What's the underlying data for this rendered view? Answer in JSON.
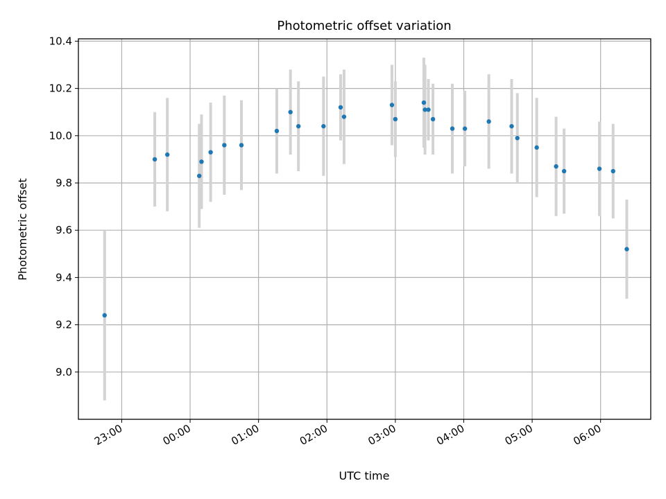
{
  "chart_data": {
    "type": "scatter",
    "title": "Photometric offset variation",
    "xlabel": "UTC time",
    "ylabel": "Photometric offset",
    "grid": true,
    "colors": {
      "point": "#1f77b4",
      "error_bar": "#d3d3d3",
      "grid": "#b0b0b0"
    },
    "xlim": [
      "22:22",
      "06:44"
    ],
    "ylim": [
      8.8,
      10.41
    ],
    "xticks": [
      "23:00",
      "00:00",
      "01:00",
      "02:00",
      "03:00",
      "04:00",
      "05:00",
      "06:00"
    ],
    "yticks": [
      9.0,
      9.2,
      9.4,
      9.6,
      9.8,
      10.0,
      10.2,
      10.4
    ],
    "ytick_labels": [
      "9.0",
      "9.2",
      "9.4",
      "9.6",
      "9.8",
      "10.0",
      "10.2",
      "10.4"
    ],
    "series": [
      {
        "points": [
          {
            "x": "22:45",
            "y": 9.24,
            "yerr": 0.36
          },
          {
            "x": "23:29",
            "y": 9.9,
            "yerr": 0.2
          },
          {
            "x": "23:40",
            "y": 9.92,
            "yerr": 0.24
          },
          {
            "x": "00:08",
            "y": 9.83,
            "yerr": 0.22
          },
          {
            "x": "00:10",
            "y": 9.89,
            "yerr": 0.2
          },
          {
            "x": "00:18",
            "y": 9.93,
            "yerr": 0.21
          },
          {
            "x": "00:30",
            "y": 9.96,
            "yerr": 0.21
          },
          {
            "x": "00:45",
            "y": 9.96,
            "yerr": 0.19
          },
          {
            "x": "01:16",
            "y": 10.02,
            "yerr": 0.18
          },
          {
            "x": "01:28",
            "y": 10.1,
            "yerr": 0.18
          },
          {
            "x": "01:35",
            "y": 10.04,
            "yerr": 0.19
          },
          {
            "x": "01:57",
            "y": 10.04,
            "yerr": 0.21
          },
          {
            "x": "02:12",
            "y": 10.12,
            "yerr": 0.14
          },
          {
            "x": "02:15",
            "y": 10.08,
            "yerr": 0.2
          },
          {
            "x": "02:57",
            "y": 10.13,
            "yerr": 0.17
          },
          {
            "x": "03:00",
            "y": 10.07,
            "yerr": 0.16
          },
          {
            "x": "03:25",
            "y": 10.14,
            "yerr": 0.19
          },
          {
            "x": "03:26",
            "y": 10.11,
            "yerr": 0.19
          },
          {
            "x": "03:29",
            "y": 10.11,
            "yerr": 0.13
          },
          {
            "x": "03:33",
            "y": 10.07,
            "yerr": 0.15
          },
          {
            "x": "03:50",
            "y": 10.03,
            "yerr": 0.19
          },
          {
            "x": "04:01",
            "y": 10.03,
            "yerr": 0.16
          },
          {
            "x": "04:22",
            "y": 10.06,
            "yerr": 0.2
          },
          {
            "x": "04:42",
            "y": 10.04,
            "yerr": 0.2
          },
          {
            "x": "04:47",
            "y": 9.99,
            "yerr": 0.19
          },
          {
            "x": "05:04",
            "y": 9.95,
            "yerr": 0.21
          },
          {
            "x": "05:21",
            "y": 9.87,
            "yerr": 0.21
          },
          {
            "x": "05:28",
            "y": 9.85,
            "yerr": 0.18
          },
          {
            "x": "05:59",
            "y": 9.86,
            "yerr": 0.2
          },
          {
            "x": "06:11",
            "y": 9.85,
            "yerr": 0.2
          },
          {
            "x": "06:23",
            "y": 9.52,
            "yerr": 0.21
          }
        ]
      }
    ]
  }
}
